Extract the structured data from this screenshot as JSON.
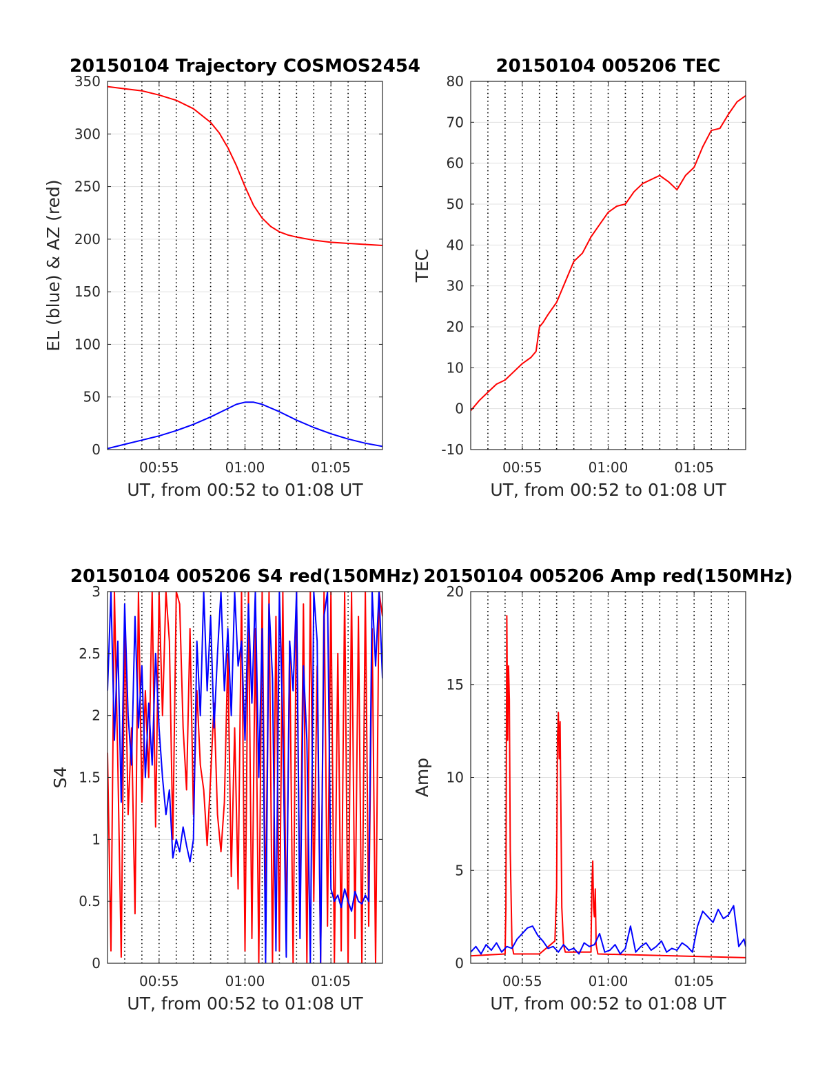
{
  "chart_data": [
    {
      "type": "line",
      "title": "20150104 Trajectory COSMOS2454",
      "xlabel": "UT, from 00:52 to 01:08 UT",
      "ylabel": "EL (blue) & AZ (red)",
      "xlim": [
        0,
        16
      ],
      "ylim": [
        0,
        350
      ],
      "xticks": [
        3,
        8,
        13
      ],
      "xtick_labels": [
        "00:55",
        "01:00",
        "01:05"
      ],
      "yticks": [
        0,
        50,
        100,
        150,
        200,
        250,
        300,
        350
      ],
      "minor_x_grid": [
        1,
        2,
        3,
        4,
        5,
        6,
        7,
        8,
        9,
        10,
        11,
        12,
        13,
        14,
        15
      ],
      "grid": true,
      "series": [
        {
          "color": "#ff0000",
          "x": [
            0,
            1,
            2,
            3,
            4,
            5,
            6,
            6.5,
            7,
            7.5,
            8,
            8.5,
            9,
            9.5,
            10,
            10.5,
            11,
            12,
            13,
            14,
            15,
            16
          ],
          "y": [
            345,
            343,
            341,
            337,
            332,
            324,
            311,
            301,
            287,
            270,
            250,
            232,
            220,
            212,
            207,
            204,
            202,
            199,
            197,
            196,
            195,
            194
          ]
        },
        {
          "color": "#0000ff",
          "x": [
            0,
            1,
            2,
            3,
            4,
            5,
            6,
            7,
            7.5,
            8,
            8.5,
            9,
            10,
            11,
            12,
            13,
            14,
            15,
            16
          ],
          "y": [
            1,
            5,
            9,
            13,
            18,
            24,
            31,
            39,
            43,
            45,
            45,
            43,
            36,
            28,
            21,
            15,
            10,
            6,
            3
          ]
        }
      ]
    },
    {
      "type": "line",
      "title": "20150104 005206 TEC",
      "xlabel": "UT, from 00:52 to 01:08 UT",
      "ylabel": "TEC",
      "xlim": [
        0,
        16
      ],
      "ylim": [
        -10,
        80
      ],
      "xticks": [
        3,
        8,
        13
      ],
      "xtick_labels": [
        "00:55",
        "01:00",
        "01:05"
      ],
      "yticks": [
        -10,
        0,
        10,
        20,
        30,
        40,
        50,
        60,
        70,
        80
      ],
      "minor_x_grid": [
        1,
        2,
        3,
        4,
        5,
        6,
        7,
        8,
        9,
        10,
        11,
        12,
        13,
        14,
        15
      ],
      "grid": true,
      "series": [
        {
          "color": "#ff0000",
          "x": [
            0,
            0.5,
            1,
            1.5,
            2,
            2.5,
            3,
            3.5,
            3.8,
            4,
            4.2,
            4.5,
            5,
            5.5,
            6,
            6.5,
            7,
            7.5,
            8,
            8.5,
            9,
            9.5,
            10,
            10.5,
            11,
            11.5,
            12,
            12.5,
            13,
            13.5,
            14,
            14.5,
            15,
            15.5,
            16
          ],
          "y": [
            -0.5,
            2,
            4,
            6,
            7,
            9,
            11,
            12.5,
            14,
            20,
            21,
            23,
            26,
            31,
            36,
            38,
            42,
            45,
            48,
            49.5,
            50,
            53,
            55,
            56,
            57,
            55.5,
            53.5,
            57,
            59,
            64,
            68,
            68.5,
            72,
            75,
            76.5
          ]
        }
      ]
    },
    {
      "type": "line",
      "title": "20150104 005206 S4 red(150MHz)",
      "xlabel": "UT, from 00:52 to 01:08 UT",
      "ylabel": "S4",
      "xlim": [
        0,
        16
      ],
      "ylim": [
        0,
        3
      ],
      "xticks": [
        3,
        8,
        13
      ],
      "xtick_labels": [
        "00:55",
        "01:00",
        "01:05"
      ],
      "yticks": [
        0,
        0.5,
        1,
        1.5,
        2,
        2.5,
        3
      ],
      "ytick_labels": [
        "0",
        "0.5",
        "1",
        "1.5",
        "2",
        "2.5",
        "3"
      ],
      "minor_x_grid": [
        1,
        2,
        3,
        4,
        5,
        6,
        7,
        8,
        9,
        10,
        11,
        12,
        13,
        14,
        15
      ],
      "grid": true,
      "series": [
        {
          "color": "#ff0000",
          "x": [
            0,
            0.2,
            0.4,
            0.6,
            0.8,
            1,
            1.2,
            1.4,
            1.6,
            1.8,
            2,
            2.2,
            2.4,
            2.6,
            2.8,
            3,
            3.2,
            3.4,
            3.6,
            3.8,
            4,
            4.2,
            4.4,
            4.6,
            4.8,
            5,
            5.2,
            5.4,
            5.6,
            5.8,
            6,
            6.2,
            6.4,
            6.6,
            6.8,
            7,
            7.2,
            7.4,
            7.6,
            7.8,
            8,
            8.2,
            8.4,
            8.6,
            8.8,
            9,
            9.2,
            9.4,
            9.6,
            9.8,
            10,
            10.2,
            10.4,
            10.6,
            10.8,
            11,
            11.2,
            11.4,
            11.6,
            11.8,
            12,
            12.2,
            12.4,
            12.6,
            12.8,
            13,
            13.2,
            13.4,
            13.6,
            13.8,
            14,
            14.2,
            14.4,
            14.6,
            14.8,
            15,
            15.2,
            15.4,
            15.6,
            15.8,
            16
          ],
          "y": [
            1.7,
            0.1,
            3.0,
            1.6,
            0.05,
            2.8,
            1.2,
            1.9,
            0.4,
            3.0,
            1.3,
            2.2,
            1.5,
            3.0,
            1.1,
            3.0,
            2.0,
            3.0,
            2.6,
            1.0,
            3.0,
            2.9,
            1.9,
            1.4,
            2.7,
            1.2,
            2.2,
            1.6,
            1.4,
            0.95,
            1.5,
            2.1,
            1.2,
            0.9,
            1.3,
            2.5,
            0.7,
            1.9,
            0.6,
            3.0,
            0.1,
            3.0,
            0.2,
            2.7,
            0.0,
            3.0,
            0.4,
            3.0,
            0.0,
            2.8,
            0.1,
            3.0,
            0.2,
            2.6,
            0.0,
            3.0,
            0.3,
            2.9,
            0.0,
            3.0,
            0.5,
            2.4,
            0.0,
            3.0,
            0.3,
            3.0,
            0.0,
            2.5,
            0.1,
            3.0,
            0.0,
            3.0,
            0.2,
            2.8,
            0.0,
            3.0,
            0.3,
            2.7,
            0.0,
            3.0,
            2.8
          ]
        },
        {
          "color": "#0000ff",
          "x": [
            0,
            0.2,
            0.4,
            0.6,
            0.8,
            1,
            1.2,
            1.4,
            1.6,
            1.8,
            2,
            2.2,
            2.4,
            2.6,
            2.8,
            3,
            3.2,
            3.4,
            3.6,
            3.8,
            4,
            4.2,
            4.4,
            4.6,
            4.8,
            5,
            5.2,
            5.4,
            5.6,
            5.8,
            6,
            6.2,
            6.4,
            6.6,
            6.8,
            7,
            7.2,
            7.4,
            7.6,
            7.8,
            8,
            8.2,
            8.4,
            8.6,
            8.8,
            9,
            9.2,
            9.4,
            9.6,
            9.8,
            10,
            10.2,
            10.4,
            10.6,
            10.8,
            11,
            11.2,
            11.4,
            11.6,
            11.8,
            12,
            12.2,
            12.4,
            12.6,
            12.8,
            13,
            13.2,
            13.4,
            13.6,
            13.8,
            14,
            14.2,
            14.4,
            14.6,
            14.8,
            15,
            15.2,
            15.4,
            15.6,
            15.8,
            16
          ],
          "y": [
            2.2,
            3.0,
            1.8,
            2.6,
            1.3,
            2.9,
            2.0,
            1.6,
            2.8,
            1.9,
            2.4,
            1.5,
            2.1,
            1.6,
            2.5,
            1.9,
            1.5,
            1.2,
            1.4,
            0.85,
            1.0,
            0.9,
            1.1,
            0.95,
            0.82,
            1.0,
            2.6,
            2.0,
            3.0,
            2.2,
            2.8,
            1.9,
            2.5,
            3.0,
            2.2,
            2.7,
            2.0,
            3.0,
            2.4,
            2.6,
            1.8,
            2.9,
            2.1,
            3.0,
            1.5,
            2.7,
            0.0,
            2.9,
            2.3,
            0.1,
            3.0,
            1.9,
            0.05,
            2.6,
            2.2,
            3.0,
            0.2,
            2.4,
            1.8,
            0.0,
            3.0,
            2.6,
            0.0,
            2.8,
            3.0,
            0.6,
            0.5,
            0.55,
            0.45,
            0.6,
            0.5,
            0.42,
            0.58,
            0.5,
            0.48,
            0.55,
            0.5,
            3.0,
            2.4,
            3.0,
            2.3
          ]
        }
      ]
    },
    {
      "type": "line",
      "title": "20150104 005206 Amp red(150MHz)",
      "xlabel": "UT, from 00:52 to 01:08 UT",
      "ylabel": "Amp",
      "xlim": [
        0,
        16
      ],
      "ylim": [
        0,
        20
      ],
      "xticks": [
        3,
        8,
        13
      ],
      "xtick_labels": [
        "00:55",
        "01:00",
        "01:05"
      ],
      "yticks": [
        0,
        5,
        10,
        15,
        20
      ],
      "minor_x_grid": [
        1,
        2,
        3,
        4,
        5,
        6,
        7,
        8,
        9,
        10,
        11,
        12,
        13,
        14,
        15
      ],
      "grid": true,
      "series": [
        {
          "color": "#ff0000",
          "x": [
            0,
            2,
            2.05,
            2.1,
            2.15,
            2.2,
            2.25,
            2.3,
            2.4,
            2.5,
            4,
            4.9,
            5.0,
            5.05,
            5.1,
            5.15,
            5.2,
            5.3,
            5.4,
            5.5,
            7,
            7.0,
            7.05,
            7.1,
            7.15,
            7.2,
            7.25,
            7.3,
            7.4,
            16
          ],
          "y": [
            0.4,
            0.5,
            3,
            18.7,
            12,
            16,
            14.2,
            6,
            1,
            0.5,
            0.5,
            1.2,
            4,
            12,
            13.5,
            11,
            13,
            3,
            1,
            0.6,
            0.6,
            1,
            4,
            5.5,
            3,
            2.5,
            4,
            1,
            0.5,
            0.3
          ]
        },
        {
          "color": "#0000ff",
          "x": [
            0,
            0.3,
            0.6,
            0.9,
            1.2,
            1.5,
            1.8,
            2.1,
            2.4,
            2.7,
            3.0,
            3.3,
            3.6,
            3.9,
            4.2,
            4.5,
            4.8,
            5.1,
            5.4,
            5.7,
            6.0,
            6.3,
            6.6,
            6.9,
            7.2,
            7.5,
            7.8,
            8.1,
            8.4,
            8.7,
            9.0,
            9.3,
            9.6,
            9.9,
            10.2,
            10.5,
            10.8,
            11.1,
            11.4,
            11.7,
            12.0,
            12.3,
            12.6,
            12.9,
            13.2,
            13.5,
            13.8,
            14.1,
            14.4,
            14.7,
            15.0,
            15.3,
            15.6,
            15.9,
            16
          ],
          "y": [
            0.6,
            0.9,
            0.5,
            1.0,
            0.7,
            1.1,
            0.6,
            0.9,
            0.8,
            1.3,
            1.6,
            1.9,
            2.0,
            1.5,
            1.2,
            0.8,
            0.9,
            0.6,
            1.0,
            0.7,
            0.8,
            0.5,
            1.1,
            0.9,
            1.0,
            1.6,
            0.6,
            0.7,
            1.0,
            0.5,
            0.8,
            2.0,
            0.6,
            0.9,
            1.1,
            0.7,
            0.9,
            1.2,
            0.6,
            0.8,
            0.7,
            1.1,
            0.9,
            0.6,
            2.0,
            2.8,
            2.5,
            2.2,
            2.9,
            2.4,
            2.6,
            3.1,
            0.9,
            1.3,
            0.9
          ]
        }
      ]
    }
  ]
}
